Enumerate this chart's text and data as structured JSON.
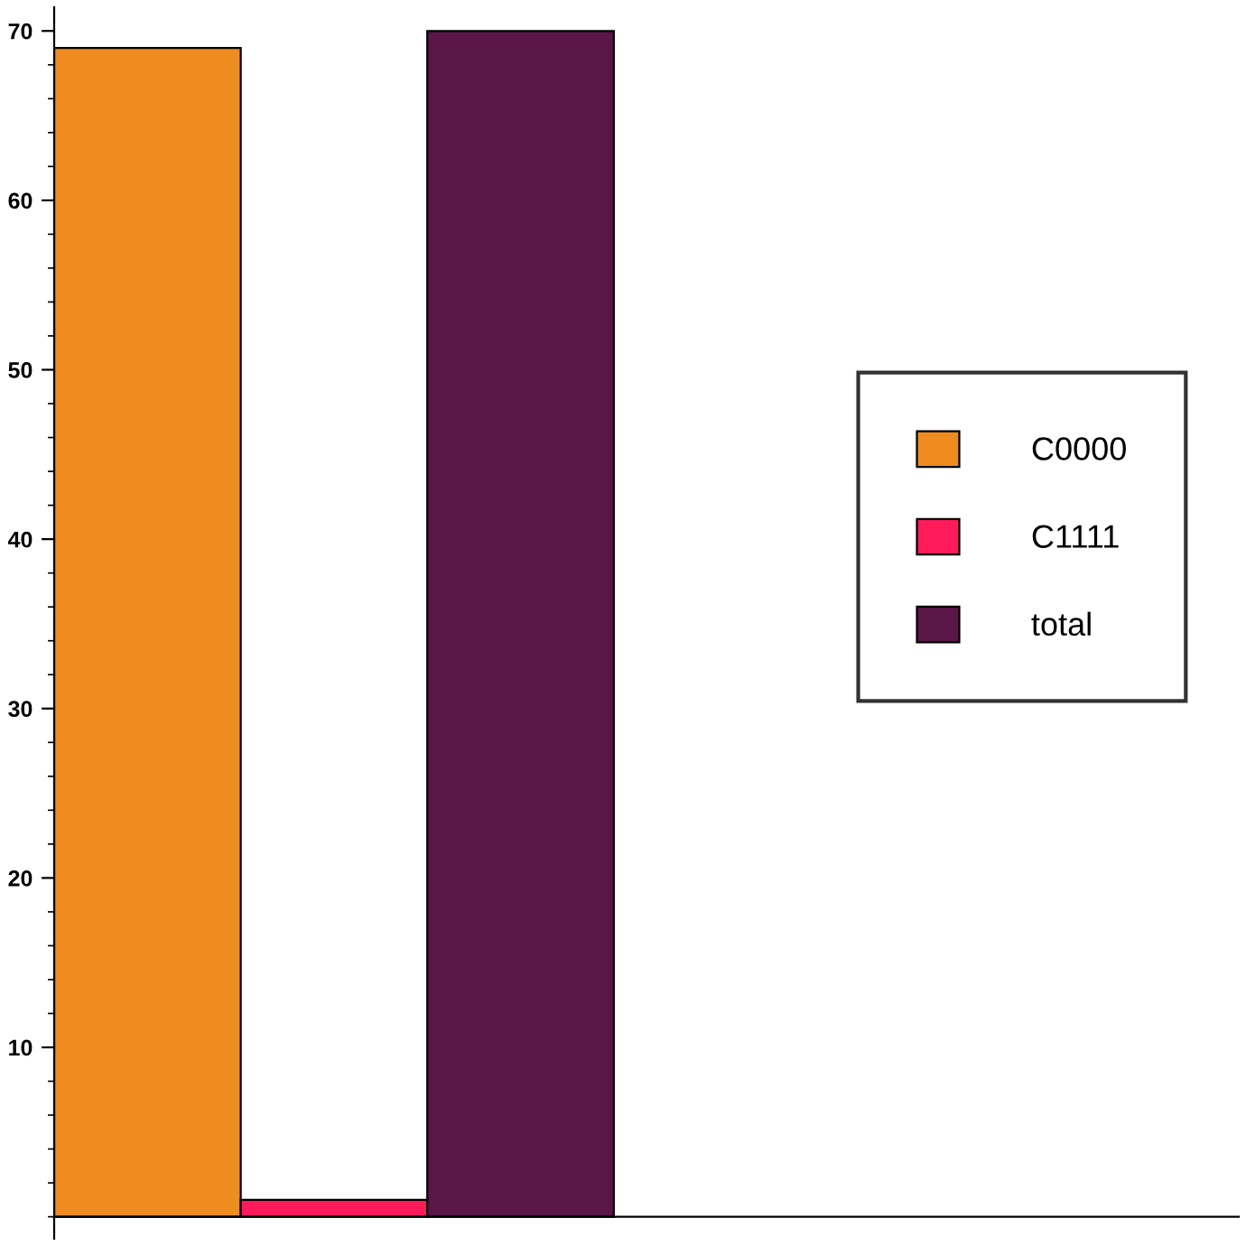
{
  "chart_data": {
    "type": "bar",
    "categories": [
      null
    ],
    "series": [
      {
        "name": "C0000",
        "color": "#ee8c20",
        "values": [
          69
        ]
      },
      {
        "name": "C1111",
        "color": "#ff1a5a",
        "values": [
          1
        ]
      },
      {
        "name": "total",
        "color": "#5a1647",
        "values": [
          70
        ]
      }
    ],
    "ylim": [
      -1.3,
      71.4
    ],
    "yticks": [
      10,
      20,
      30,
      40,
      50,
      60,
      70
    ],
    "grid": false,
    "legend": "right"
  }
}
